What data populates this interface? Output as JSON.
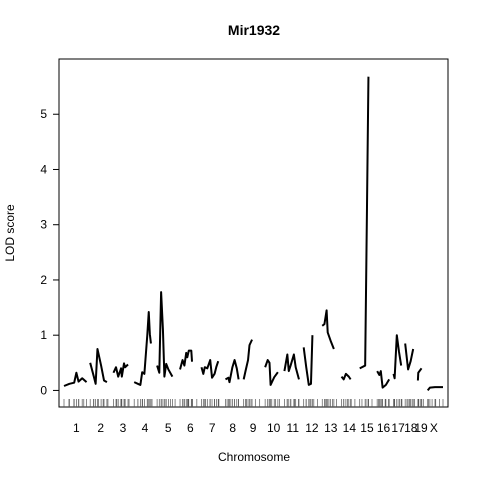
{
  "chart_data": {
    "type": "line",
    "title": "Mir1932",
    "xlabel": "Chromosome",
    "ylabel": "LOD score",
    "ylim": [
      -0.3,
      6.0
    ],
    "yticks": [
      0,
      1,
      2,
      3,
      4,
      5
    ],
    "xlim": [
      0,
      100
    ],
    "grid": false,
    "legend": "none",
    "line_color": "#000000",
    "chromosomes": [
      {
        "label": "1",
        "range": [
          0.0,
          6.8
        ],
        "points": [
          [
            0.0,
            0.08
          ],
          [
            1.5,
            0.12
          ],
          [
            2.8,
            0.14
          ],
          [
            3.4,
            0.32
          ],
          [
            4.0,
            0.16
          ],
          [
            5.0,
            0.22
          ],
          [
            6.2,
            0.15
          ]
        ]
      },
      {
        "label": "2",
        "range": [
          6.8,
          13.4
        ],
        "points": [
          [
            7.2,
            0.5
          ],
          [
            8.2,
            0.25
          ],
          [
            8.7,
            0.12
          ],
          [
            9.2,
            0.75
          ],
          [
            10.2,
            0.45
          ],
          [
            11.0,
            0.18
          ],
          [
            11.8,
            0.15
          ]
        ]
      },
      {
        "label": "3",
        "range": [
          13.4,
          19.0
        ],
        "points": [
          [
            13.6,
            0.32
          ],
          [
            14.3,
            0.42
          ],
          [
            14.9,
            0.25
          ],
          [
            15.7,
            0.4
          ],
          [
            15.9,
            0.25
          ],
          [
            16.5,
            0.49
          ],
          [
            16.8,
            0.42
          ],
          [
            17.6,
            0.47
          ]
        ]
      },
      {
        "label": "4",
        "range": [
          19.0,
          25.5
        ],
        "points": [
          [
            19.3,
            0.15
          ],
          [
            20.3,
            0.12
          ],
          [
            21.0,
            0.1
          ],
          [
            21.5,
            0.33
          ],
          [
            22.1,
            0.3
          ],
          [
            22.9,
            1.0
          ],
          [
            23.3,
            1.42
          ],
          [
            23.6,
            1.02
          ],
          [
            23.9,
            0.85
          ]
        ]
      },
      {
        "label": "5",
        "range": [
          25.5,
          31.8
        ],
        "points": [
          [
            25.6,
            0.45
          ],
          [
            26.2,
            0.32
          ],
          [
            26.7,
            1.78
          ],
          [
            27.2,
            1.1
          ],
          [
            27.6,
            0.25
          ],
          [
            28.1,
            0.48
          ],
          [
            28.7,
            0.38
          ],
          [
            29.8,
            0.25
          ]
        ]
      },
      {
        "label": "6",
        "range": [
          31.8,
          37.7
        ],
        "points": [
          [
            31.9,
            0.38
          ],
          [
            32.6,
            0.55
          ],
          [
            33.1,
            0.45
          ],
          [
            33.6,
            0.68
          ],
          [
            33.9,
            0.6
          ],
          [
            34.3,
            0.72
          ],
          [
            35.0,
            0.72
          ],
          [
            35.2,
            0.52
          ]
        ]
      },
      {
        "label": "7",
        "range": [
          37.7,
          43.8
        ],
        "points": [
          [
            37.8,
            0.42
          ],
          [
            38.3,
            0.3
          ],
          [
            38.7,
            0.42
          ],
          [
            39.4,
            0.4
          ],
          [
            40.2,
            0.55
          ],
          [
            40.7,
            0.23
          ],
          [
            41.4,
            0.3
          ],
          [
            41.9,
            0.43
          ],
          [
            42.4,
            0.53
          ]
        ]
      },
      {
        "label": "8",
        "range": [
          43.8,
          49.0
        ],
        "points": [
          [
            44.4,
            0.2
          ],
          [
            45.2,
            0.23
          ],
          [
            45.5,
            0.15
          ],
          [
            46.3,
            0.42
          ],
          [
            46.9,
            0.55
          ],
          [
            47.5,
            0.4
          ],
          [
            48.0,
            0.2
          ]
        ]
      },
      {
        "label": "9",
        "range": [
          49.0,
          55.0
        ],
        "points": [
          [
            49.4,
            0.2
          ],
          [
            49.9,
            0.35
          ],
          [
            50.6,
            0.55
          ],
          [
            51.0,
            0.82
          ],
          [
            51.7,
            0.92
          ]
        ]
      },
      {
        "label": "10",
        "range": [
          55.0,
          60.3
        ],
        "points": [
          [
            55.3,
            0.42
          ],
          [
            56.0,
            0.55
          ],
          [
            56.5,
            0.5
          ],
          [
            56.8,
            0.1
          ],
          [
            57.8,
            0.24
          ],
          [
            58.8,
            0.33
          ]
        ]
      },
      {
        "label": "11",
        "range": [
          60.3,
          65.5
        ],
        "points": [
          [
            60.6,
            0.35
          ],
          [
            61.4,
            0.65
          ],
          [
            61.8,
            0.35
          ],
          [
            62.3,
            0.45
          ],
          [
            63.2,
            0.65
          ],
          [
            63.7,
            0.42
          ],
          [
            64.6,
            0.2
          ]
        ]
      },
      {
        "label": "12",
        "range": [
          65.5,
          70.8
        ],
        "points": [
          [
            65.9,
            0.78
          ],
          [
            66.6,
            0.42
          ],
          [
            67.3,
            0.1
          ],
          [
            67.9,
            0.12
          ],
          [
            68.3,
            1.0
          ]
        ]
      },
      {
        "label": "13",
        "range": [
          70.8,
          75.9
        ],
        "points": [
          [
            71.0,
            1.17
          ],
          [
            71.6,
            1.2
          ],
          [
            72.2,
            1.45
          ],
          [
            72.5,
            1.05
          ],
          [
            73.3,
            0.9
          ],
          [
            74.2,
            0.75
          ]
        ]
      },
      {
        "label": "14",
        "range": [
          75.9,
          81.0
        ],
        "points": [
          [
            76.3,
            0.25
          ],
          [
            76.9,
            0.2
          ],
          [
            77.5,
            0.3
          ],
          [
            78.3,
            0.25
          ],
          [
            78.8,
            0.2
          ]
        ]
      },
      {
        "label": "15",
        "range": [
          81.0,
          85.6
        ],
        "points": [
          [
            81.3,
            0.4
          ],
          [
            82.8,
            0.45
          ],
          [
            83.3,
            3.3
          ],
          [
            83.7,
            5.68
          ]
        ]
      },
      {
        "label": "16",
        "range": [
          85.6,
          90.1
        ],
        "points": [
          [
            86.1,
            0.35
          ],
          [
            86.7,
            0.28
          ],
          [
            87.1,
            0.35
          ],
          [
            87.6,
            0.05
          ],
          [
            88.5,
            0.1
          ],
          [
            89.4,
            0.2
          ]
        ]
      },
      {
        "label": "17",
        "range": [
          90.1,
          93.6
        ],
        "points": [
          [
            90.6,
            0.3
          ],
          [
            90.9,
            0.22
          ],
          [
            91.5,
            1.0
          ],
          [
            92.1,
            0.7
          ],
          [
            92.7,
            0.45
          ]
        ]
      },
      {
        "label": "18",
        "range": [
          93.6,
          97.1
        ],
        "points": [
          [
            93.8,
            0.85
          ],
          [
            94.6,
            0.38
          ],
          [
            95.3,
            0.53
          ],
          [
            96.0,
            0.75
          ]
        ]
      },
      {
        "label": "19",
        "range": [
          97.1,
          99.2
        ],
        "points": [
          [
            97.3,
            0.18
          ],
          [
            97.4,
            0.32
          ],
          [
            98.3,
            0.4
          ]
        ]
      },
      {
        "label": "X",
        "range": [
          99.2,
          104.2
        ],
        "points": [
          [
            100.0,
            0.0
          ],
          [
            100.6,
            0.05
          ],
          [
            102.0,
            0.06
          ],
          [
            104.2,
            0.06
          ]
        ]
      }
    ]
  }
}
